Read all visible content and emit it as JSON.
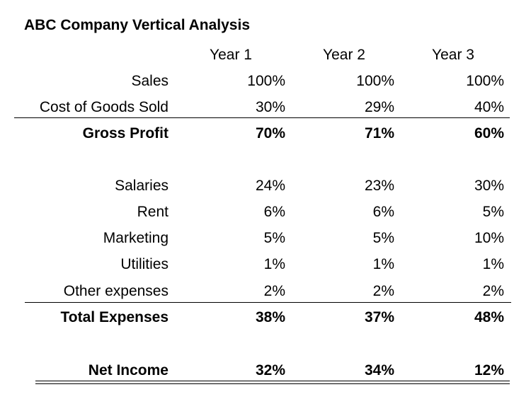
{
  "title": "ABC Company Vertical Analysis",
  "columns": [
    "Year 1",
    "Year 2",
    "Year 3"
  ],
  "rows": [
    {
      "label": "Sales",
      "values": [
        "100%",
        "100%",
        "100%"
      ],
      "bold": false
    },
    {
      "label": "Cost of Goods Sold",
      "values": [
        "30%",
        "29%",
        "40%"
      ],
      "bold": false
    },
    {
      "label": "Gross Profit",
      "values": [
        "70%",
        "71%",
        "60%"
      ],
      "bold": true
    },
    {
      "label": "Salaries",
      "values": [
        "24%",
        "23%",
        "30%"
      ],
      "bold": false
    },
    {
      "label": "Rent",
      "values": [
        "6%",
        "6%",
        "5%"
      ],
      "bold": false
    },
    {
      "label": "Marketing",
      "values": [
        "5%",
        "5%",
        "10%"
      ],
      "bold": false
    },
    {
      "label": "Utilities",
      "values": [
        "1%",
        "1%",
        "1%"
      ],
      "bold": false
    },
    {
      "label": "Other expenses",
      "values": [
        "2%",
        "2%",
        "2%"
      ],
      "bold": false
    },
    {
      "label": "Total Expenses",
      "values": [
        "38%",
        "37%",
        "48%"
      ],
      "bold": true
    },
    {
      "label": "Net Income",
      "values": [
        "32%",
        "34%",
        "12%"
      ],
      "bold": true
    }
  ]
}
